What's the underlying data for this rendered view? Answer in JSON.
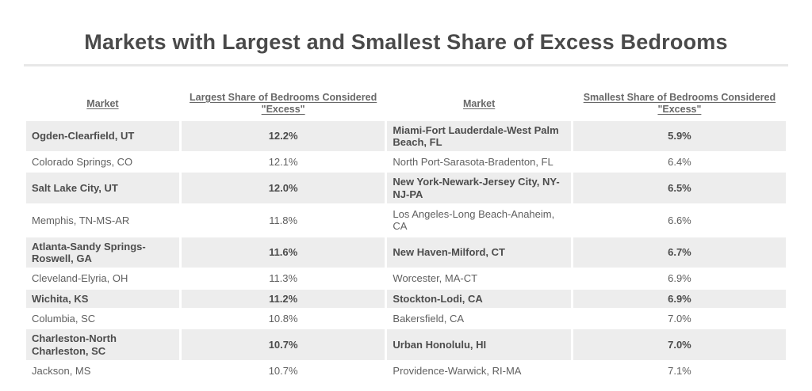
{
  "header": {
    "title": "Markets with Largest and Smallest Share of Excess Bedrooms"
  },
  "colors": {
    "title_text": "#4a4a4a",
    "header_text": "#686868",
    "row_stripe": "#ededed",
    "row_bold_text": "#4c4c4c",
    "row_normal_text": "#606060",
    "divider": "#e8e8e8",
    "background": "#ffffff"
  },
  "chart_data": {
    "type": "table",
    "title": "Markets with Largest and Smallest Share of Excess Bedrooms",
    "columns": [
      "Market",
      "Largest Share of Bedrooms Considered \"Excess\"",
      "Market",
      "Smallest Share of Bedrooms Considered \"Excess\""
    ],
    "rows": [
      [
        "Ogden-Clearfield, UT",
        "12.2%",
        "Miami-Fort Lauderdale-West Palm Beach, FL",
        "5.9%"
      ],
      [
        "Colorado Springs, CO",
        "12.1%",
        "North Port-Sarasota-Bradenton, FL",
        "6.4%"
      ],
      [
        "Salt Lake City, UT",
        "12.0%",
        "New York-Newark-Jersey City, NY-NJ-PA",
        "6.5%"
      ],
      [
        "Memphis, TN-MS-AR",
        "11.8%",
        "Los Angeles-Long Beach-Anaheim, CA",
        "6.6%"
      ],
      [
        "Atlanta-Sandy Springs-Roswell, GA",
        "11.6%",
        "New Haven-Milford, CT",
        "6.7%"
      ],
      [
        "Cleveland-Elyria, OH",
        "11.3%",
        "Worcester, MA-CT",
        "6.9%"
      ],
      [
        "Wichita, KS",
        "11.2%",
        "Stockton-Lodi, CA",
        "6.9%"
      ],
      [
        "Columbia, SC",
        "10.8%",
        "Bakersfield, CA",
        "7.0%"
      ],
      [
        "Charleston-North Charleston, SC",
        "10.7%",
        "Urban Honolulu, HI",
        "7.0%"
      ],
      [
        "Jackson, MS",
        "10.7%",
        "Providence-Warwick, RI-MA",
        "7.1%"
      ]
    ],
    "largest_share_values_pct": [
      12.2,
      12.1,
      12.0,
      11.8,
      11.6,
      11.3,
      11.2,
      10.8,
      10.7,
      10.7
    ],
    "smallest_share_values_pct": [
      5.9,
      6.4,
      6.5,
      6.6,
      6.7,
      6.9,
      6.9,
      7.0,
      7.0,
      7.1
    ],
    "layout": {
      "striped_rows": "odd rows gray and bold, even rows white and normal",
      "header_style": "bold underlined, centered",
      "value_alignment": "center",
      "market_alignment": "left"
    }
  }
}
